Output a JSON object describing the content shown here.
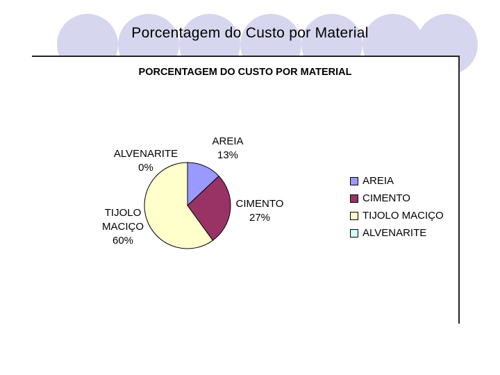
{
  "slide": {
    "title": "Porcentagem do Custo por Material"
  },
  "chart_data": {
    "type": "pie",
    "title": "PORCENTAGEM DO CUSTO POR MATERIAL",
    "categories": [
      "AREIA",
      "CIMENTO",
      "TIJOLO MACIÇO",
      "ALVENARITE"
    ],
    "values": [
      13,
      27,
      60,
      0
    ],
    "value_labels": [
      "13%",
      "27%",
      "60%",
      "0%"
    ],
    "label_lines": [
      [
        "AREIA",
        "13%"
      ],
      [
        "CIMENTO",
        "27%"
      ],
      [
        "TIJOLO",
        "MACIÇO",
        "60%"
      ],
      [
        "ALVENARITE",
        "0%"
      ]
    ],
    "colors": [
      "#9999ff",
      "#993366",
      "#ffffcc",
      "#ccffff"
    ],
    "legend_position": "right",
    "grid": false
  }
}
